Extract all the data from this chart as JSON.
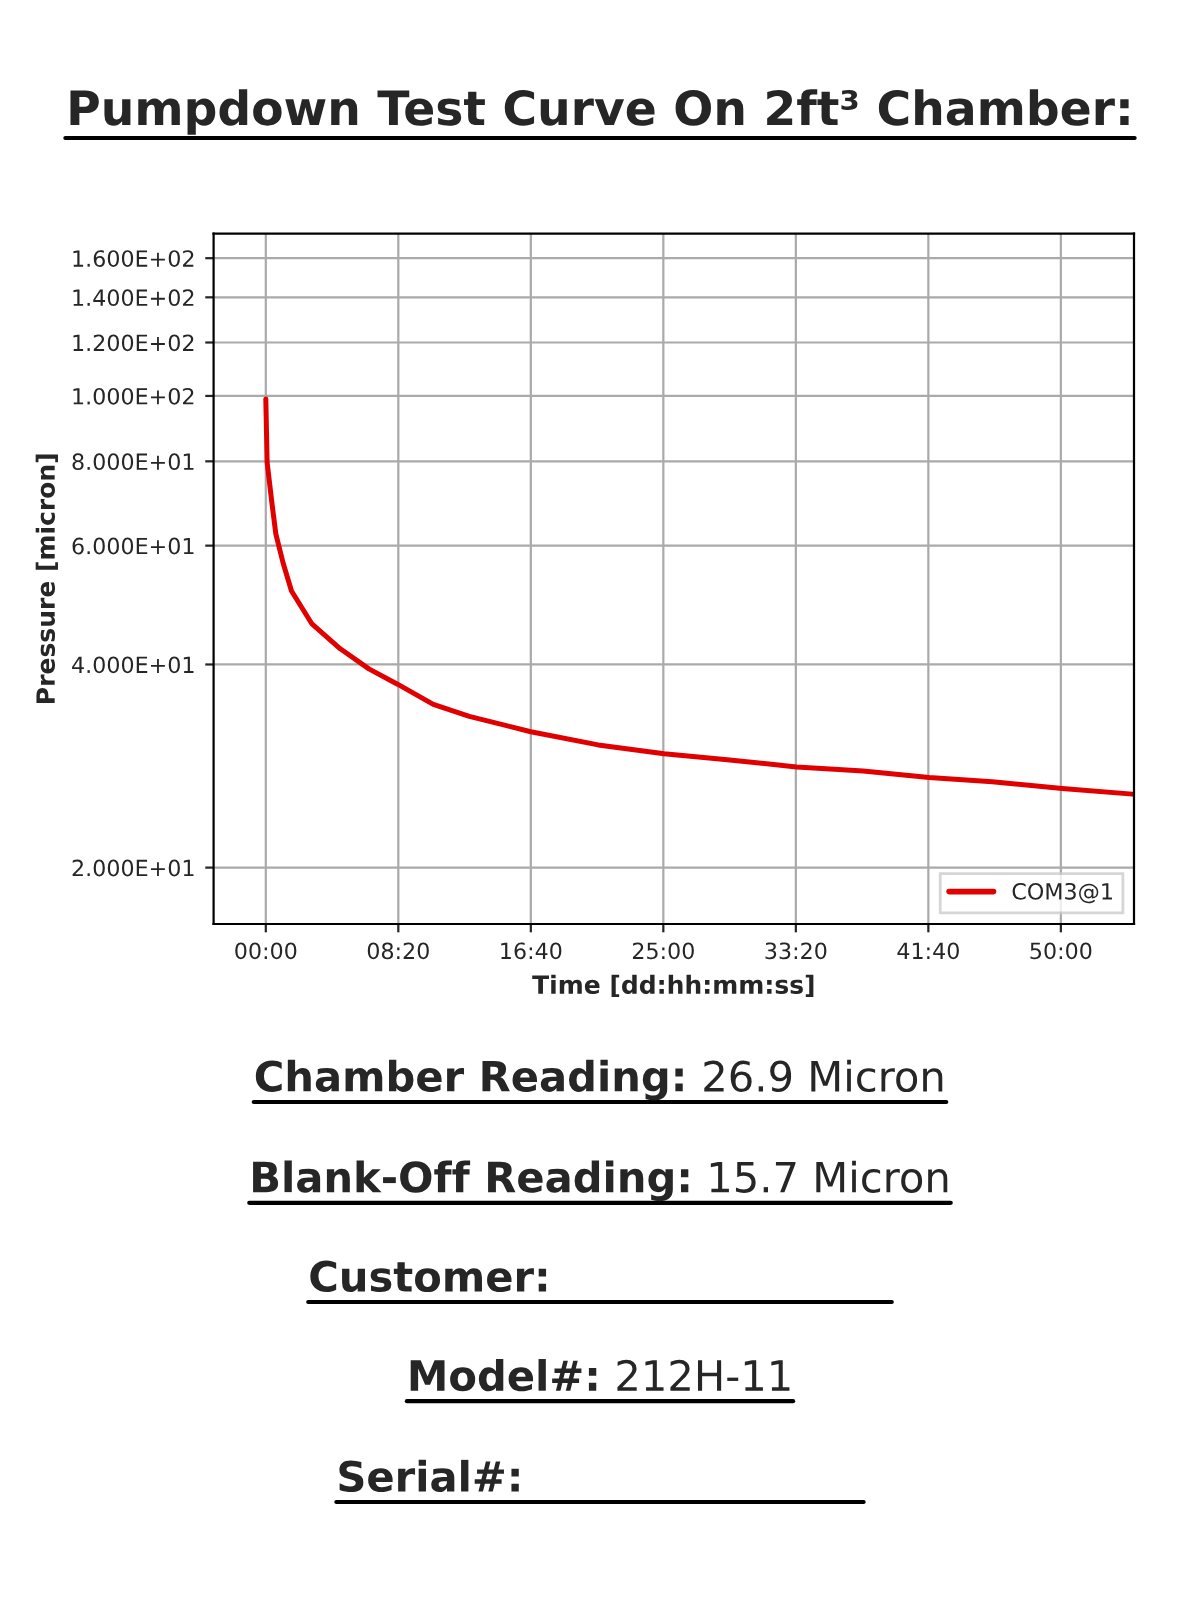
{
  "chart_data": {
    "type": "line",
    "title": "Pumpdown Test Curve On 2ft³ Chamber:",
    "xlabel": "Time [dd:hh:mm:ss]",
    "ylabel": "Pressure [micron]",
    "x": [
      0,
      5,
      24,
      38,
      65,
      97,
      173,
      281,
      389,
      497,
      632,
      768,
      1000,
      1254,
      1503,
      1741,
      2003,
      2254,
      2503,
      2741,
      3005,
      3270
    ],
    "series": [
      {
        "name": "COM3@1",
        "color": "#e00000",
        "values": [
          99,
          79.7,
          68.9,
          62.4,
          56.6,
          51.4,
          46.0,
          42.2,
          39.4,
          37.4,
          34.9,
          33.5,
          31.8,
          30.4,
          29.5,
          28.9,
          28.2,
          27.8,
          27.2,
          26.8,
          26.2,
          25.7
        ]
      }
    ],
    "log": "y",
    "xlim": [
      -197,
      3276
    ],
    "ylim": [
      16.5,
      174
    ],
    "xticks": [
      {
        "value": 0,
        "label": "00:00"
      },
      {
        "value": 500,
        "label": "08:20"
      },
      {
        "value": 1000,
        "label": "16:40"
      },
      {
        "value": 1500,
        "label": "25:00"
      },
      {
        "value": 2000,
        "label": "33:20"
      },
      {
        "value": 2500,
        "label": "41:40"
      },
      {
        "value": 3000,
        "label": "50:00"
      }
    ],
    "yticks": [
      {
        "value": 20,
        "label": "2.000E+01"
      },
      {
        "value": 40,
        "label": "4.000E+01"
      },
      {
        "value": 60,
        "label": "6.000E+01"
      },
      {
        "value": 80,
        "label": "8.000E+01"
      },
      {
        "value": 100,
        "label": "1.000E+02"
      },
      {
        "value": 120,
        "label": "1.200E+02"
      },
      {
        "value": 140,
        "label": "1.400E+02"
      },
      {
        "value": 160,
        "label": "1.600E+02"
      }
    ],
    "grid": true,
    "legend": "bottom right",
    "marker": "none",
    "line_style": "solid",
    "annotations": [
      "Chamber Reading: 26.9 Micron",
      "Blank-Off Reading: 15.7 Micron",
      "Customer:",
      "Model#: 212H-11",
      "Serial#:"
    ]
  }
}
